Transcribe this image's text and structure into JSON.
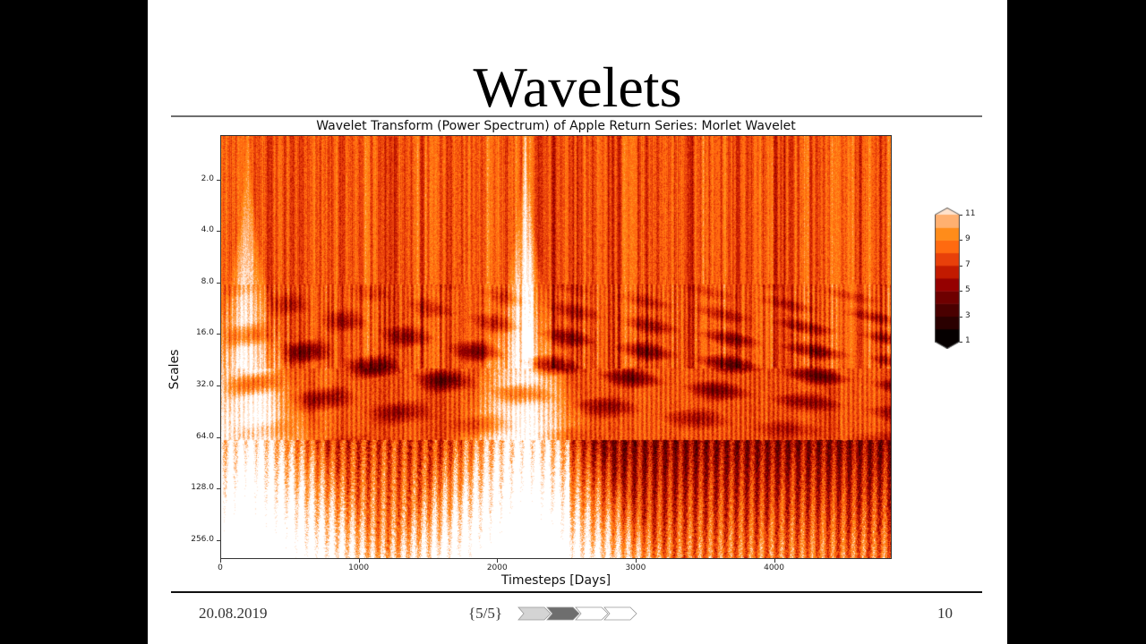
{
  "slide": {
    "title": "Wavelets",
    "footer": {
      "date": "20.08.2019",
      "section": "{5/5}",
      "page": "10",
      "nav_arrows": [
        {
          "state": "visited",
          "fill": "#d4d4d4"
        },
        {
          "state": "current",
          "fill": "#6e6e6e"
        },
        {
          "state": "upcoming",
          "fill": "#ffffff"
        },
        {
          "state": "upcoming",
          "fill": "#ffffff"
        }
      ]
    }
  },
  "chart_data": {
    "type": "heatmap",
    "title": "Wavelet Transform (Power Spectrum) of Apple Return Series: Morlet Wavelet",
    "xlabel": "Timesteps [Days]",
    "ylabel": "Scales",
    "xlim": [
      0,
      4850
    ],
    "x_ticks": [
      0,
      1000,
      2000,
      3000,
      4000
    ],
    "x_tick_labels": [
      "0",
      "1000",
      "2000",
      "3000",
      "4000"
    ],
    "y_scale": "log2",
    "ylim": [
      1.1,
      330
    ],
    "y_inverted": true,
    "y_ticks": [
      2,
      4,
      8,
      16,
      32,
      64,
      128,
      256
    ],
    "y_tick_labels": [
      "2.0",
      "4.0",
      "8.0",
      "16.0",
      "32.0",
      "64.0",
      "128.0",
      "256.0"
    ],
    "colormap": "gist_heat_r (reversed, discrete)",
    "colorbar": {
      "levels": [
        1,
        2,
        3,
        4,
        5,
        6,
        7,
        8,
        9,
        10,
        11
      ],
      "tick_labels": [
        "1",
        "3",
        "5",
        "7",
        "9",
        "11"
      ],
      "extend": "both",
      "colors": [
        "#050000",
        "#2a0000",
        "#4a0000",
        "#6e0000",
        "#950000",
        "#c21a00",
        "#e8400a",
        "#ff6a10",
        "#ff8c1a",
        "#ffb070",
        "#ffe2cc"
      ],
      "over_color": "#ffffff",
      "under_color": "#000000"
    },
    "bright_ridges_days": [
      190,
      2200
    ],
    "description": "Power spectrum shows high-frequency (small scale) bands dominated by dense vertical streaks of red/orange; mid scales (16-64) show dark low-power pockets; large scales (128-256) mostly low-level light/white values with cone-shaped bright regions near days ~190 and ~2200, orange at days > 2500."
  }
}
